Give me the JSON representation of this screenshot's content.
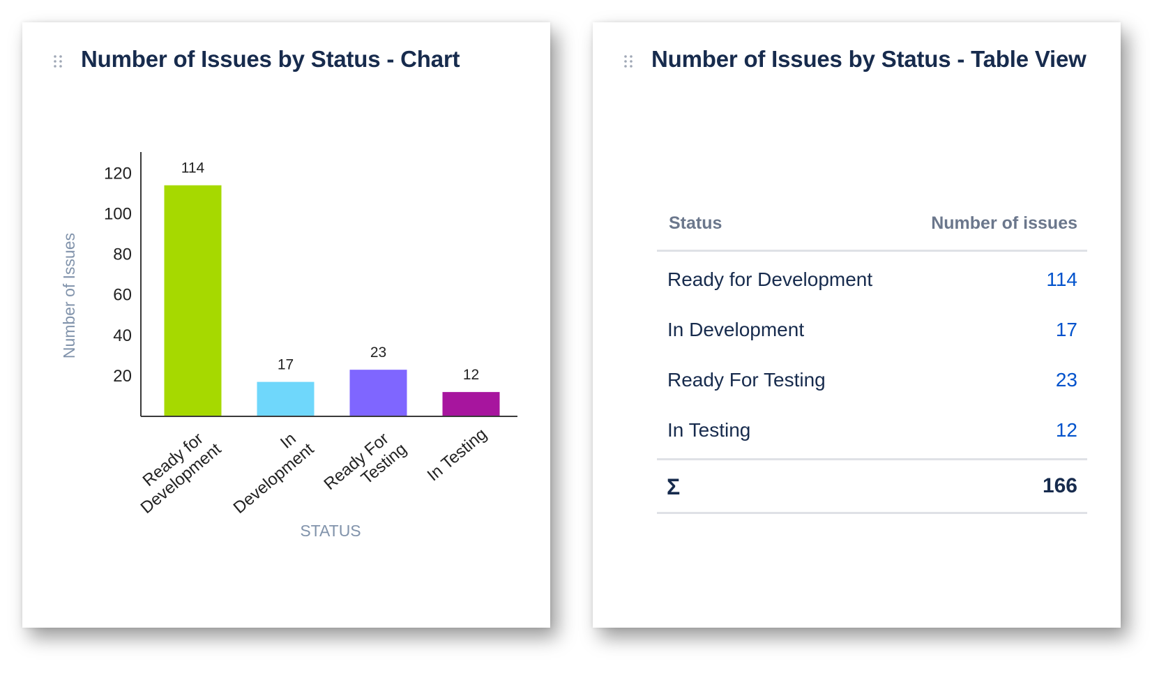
{
  "chart_panel": {
    "title": "Number of Issues by Status - Chart",
    "drag_icon": "drag-handle-icon"
  },
  "table_panel": {
    "title": "Number of Issues by Status - Table View",
    "drag_icon": "drag-handle-icon",
    "headers": [
      "Status",
      "Number of issues"
    ],
    "rows": [
      {
        "status": "Ready for Development",
        "count": "114"
      },
      {
        "status": "In Development",
        "count": "17"
      },
      {
        "status": "Ready For Testing",
        "count": "23"
      },
      {
        "status": "In Testing",
        "count": "12"
      }
    ],
    "total_label": "Σ",
    "total_value": "166",
    "link_color": "#0052cc"
  },
  "chart_data": {
    "type": "bar",
    "categories": [
      [
        "Ready for",
        "Development"
      ],
      [
        "In",
        "Development"
      ],
      [
        "Ready For",
        "Testing"
      ],
      [
        "In Testing"
      ]
    ],
    "values": [
      114,
      17,
      23,
      12
    ],
    "colors": [
      "#a6d900",
      "#6fd7fb",
      "#7f66ff",
      "#a7159e"
    ],
    "title": "",
    "xlabel": "STATUS",
    "ylabel": "Number of Issues",
    "yticks": [
      20,
      40,
      60,
      80,
      100,
      120
    ],
    "ylim": [
      0,
      128
    ],
    "grid": false,
    "legend": "none",
    "data_labels": true
  }
}
